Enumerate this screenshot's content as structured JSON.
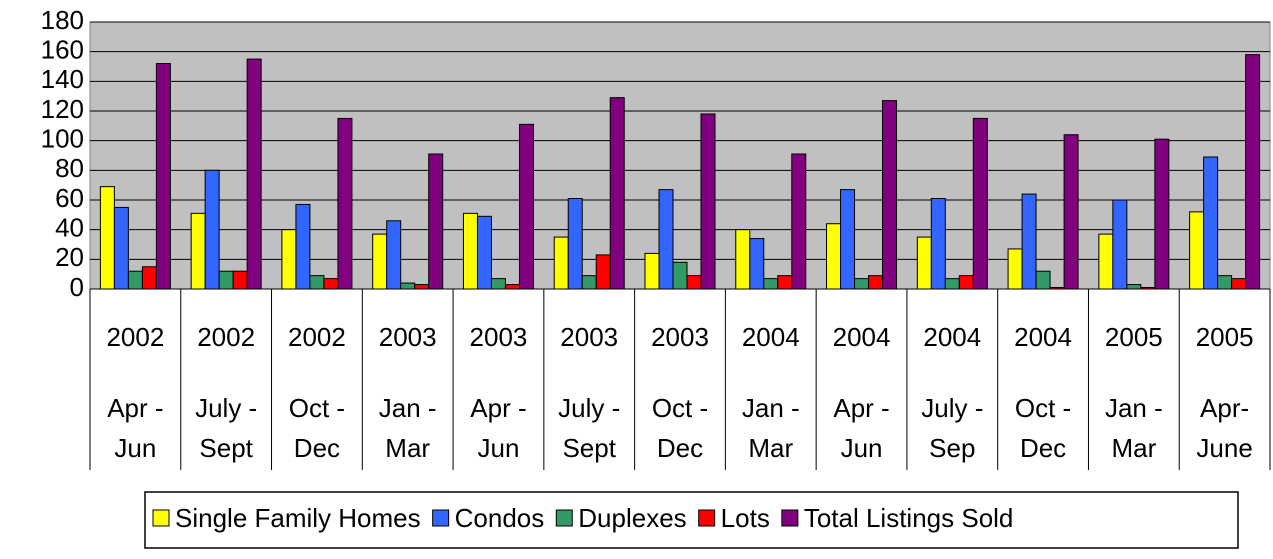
{
  "chart_data": {
    "type": "bar",
    "categories": [
      [
        "2002",
        "Apr -",
        "Jun"
      ],
      [
        "2002",
        "July -",
        "Sept"
      ],
      [
        "2002",
        "Oct -",
        "Dec"
      ],
      [
        "2003",
        "Jan -",
        "Mar"
      ],
      [
        "2003",
        "Apr -",
        "Jun"
      ],
      [
        "2003",
        "July -",
        "Sept"
      ],
      [
        "2003",
        "Oct -",
        "Dec"
      ],
      [
        "2004",
        "Jan -",
        "Mar"
      ],
      [
        "2004",
        "Apr -",
        "Jun"
      ],
      [
        "2004",
        "July -",
        "Sep"
      ],
      [
        "2004",
        "Oct -",
        "Dec"
      ],
      [
        "2005",
        "Jan -",
        "Mar"
      ],
      [
        "2005",
        "Apr-",
        "June"
      ]
    ],
    "series": [
      {
        "name": "Single Family Homes",
        "color": "#ffff00",
        "values": [
          69,
          51,
          40,
          37,
          51,
          35,
          24,
          40,
          44,
          35,
          27,
          37,
          52
        ]
      },
      {
        "name": "Condos",
        "color": "#3366ff",
        "values": [
          55,
          80,
          57,
          46,
          49,
          61,
          67,
          34,
          67,
          61,
          64,
          60,
          89
        ]
      },
      {
        "name": "Duplexes",
        "color": "#339966",
        "values": [
          12,
          12,
          9,
          4,
          7,
          9,
          18,
          7,
          7,
          7,
          12,
          3,
          9
        ]
      },
      {
        "name": "Lots",
        "color": "#ff0000",
        "values": [
          15,
          12,
          7,
          3,
          3,
          23,
          9,
          9,
          9,
          9,
          1,
          1,
          7
        ]
      },
      {
        "name": "Total Listings Sold",
        "color": "#800080",
        "values": [
          152,
          155,
          115,
          91,
          111,
          129,
          118,
          91,
          127,
          115,
          104,
          101,
          158
        ]
      }
    ],
    "ylim": [
      0,
      180
    ],
    "yticks": [
      0,
      20,
      40,
      60,
      80,
      100,
      120,
      140,
      160,
      180
    ],
    "grid": true,
    "plot_background": "#c0c0c0",
    "legend": "bottom"
  }
}
